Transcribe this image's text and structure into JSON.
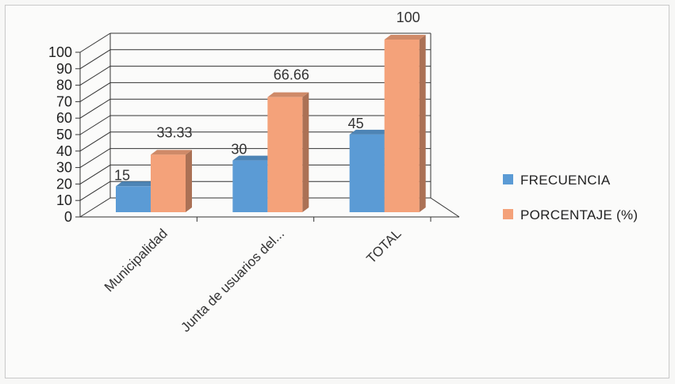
{
  "chart_data": {
    "type": "bar",
    "style": "3d-clustered-column",
    "categories": [
      "Municipalidad",
      "Junta de usuarios del...",
      "TOTAL"
    ],
    "series": [
      {
        "name": "FRECUENCIA",
        "values": [
          15,
          30,
          45
        ],
        "color": "#5b9bd5",
        "labels": [
          "15",
          "30",
          "45"
        ]
      },
      {
        "name": "PORCENTAJE (%)",
        "values": [
          33.33,
          66.66,
          100
        ],
        "color": "#f4a27a",
        "labels": [
          "33.33",
          "66.66",
          "100"
        ]
      }
    ],
    "ylim": [
      0,
      100
    ],
    "yticks": [
      "0",
      "10",
      "20",
      "30",
      "40",
      "50",
      "60",
      "70",
      "80",
      "90",
      "100"
    ],
    "grid": true,
    "legend": "right"
  }
}
